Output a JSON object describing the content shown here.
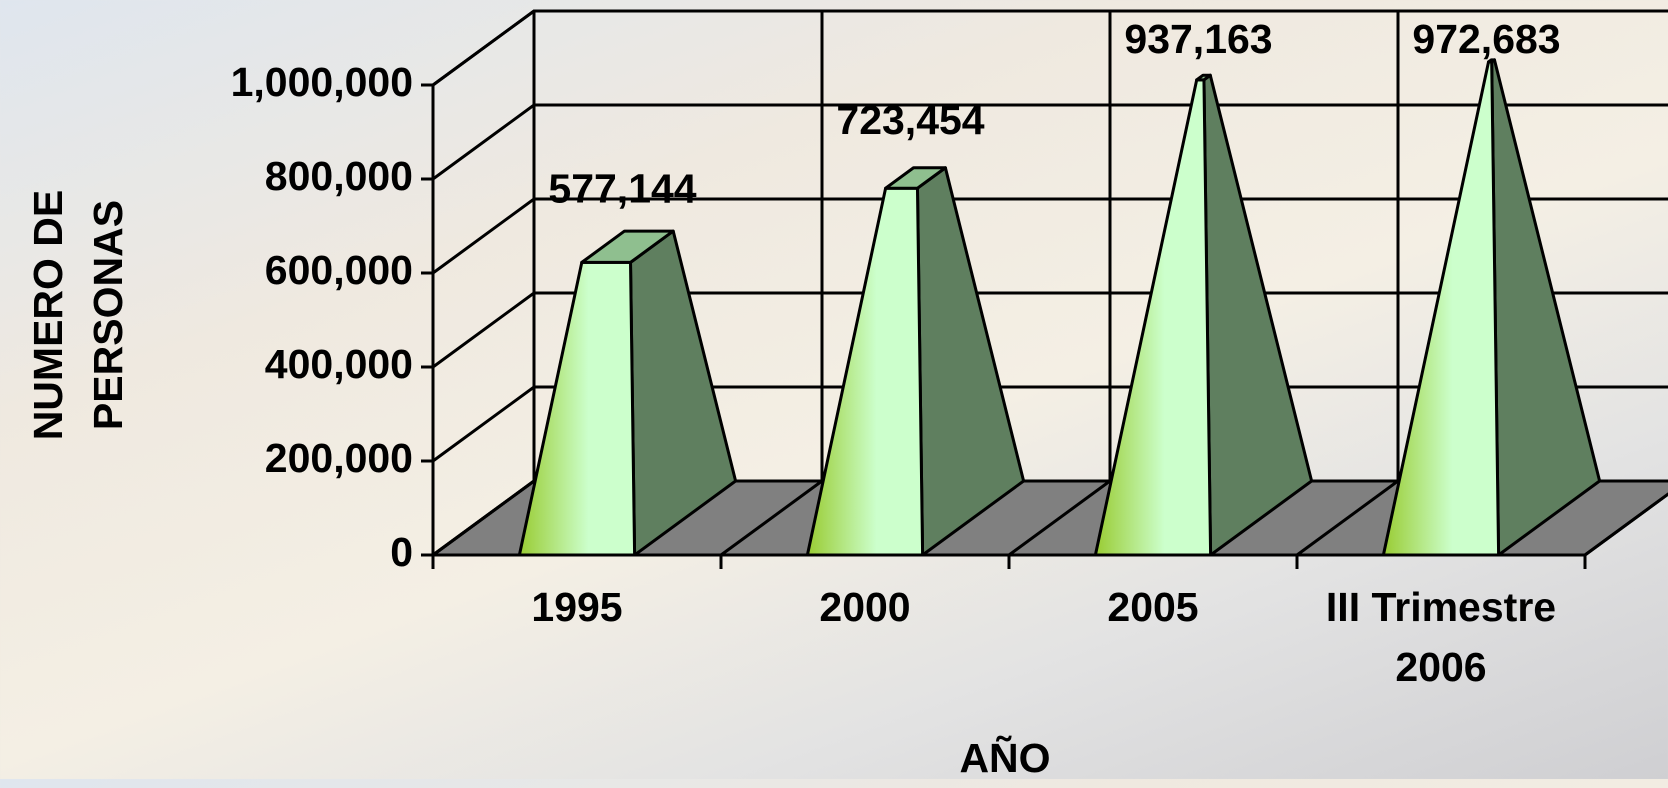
{
  "chart_data": {
    "type": "pyramid3d",
    "x_label": "AÑO",
    "y_label": "NUMERO DE PERSONAS",
    "categories": [
      "1995",
      "2000",
      "2005",
      "III Trimestre 2006"
    ],
    "values": [
      577144,
      723454,
      937163,
      972683
    ],
    "value_labels": [
      "577,144",
      "723,454",
      "937,163",
      "972,683"
    ],
    "colors": {
      "front": "#ccffcc",
      "front_edge": "#99cc33",
      "side": "#5f7f5f",
      "top": "#8fbf8f",
      "floor": "#808080"
    },
    "ylim": [
      0,
      1000000
    ],
    "yticks": [
      0,
      {
        "value": 200000,
        "label": "200,000"
      },
      {
        "value": 400000,
        "label": "400,000"
      },
      {
        "value": 600000,
        "label": "600,000"
      },
      {
        "value": 800000,
        "label": "800,000"
      },
      {
        "value": 1000000,
        "label": "1,000,000"
      }
    ],
    "grid": true
  }
}
